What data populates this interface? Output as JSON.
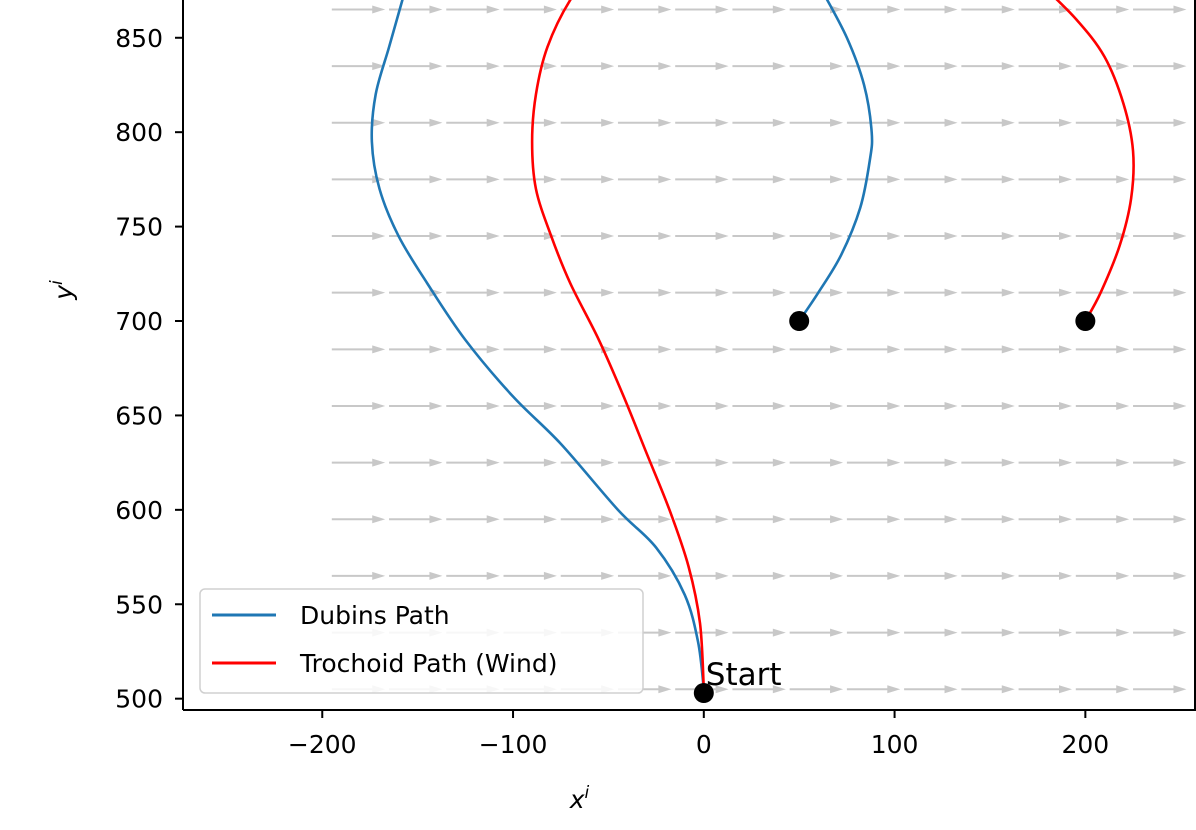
{
  "chart_data": {
    "type": "line",
    "title": "",
    "xlabel": "x",
    "xlabel_sup": "i",
    "ylabel": "y",
    "ylabel_sup": "i",
    "xlim": [
      -273,
      258
    ],
    "ylim": [
      494,
      870
    ],
    "xticks": [
      -200,
      -100,
      0,
      100,
      200
    ],
    "xtick_labels": [
      "−200",
      "−100",
      "0",
      "100",
      "200"
    ],
    "yticks": [
      500,
      550,
      600,
      650,
      700,
      750,
      800,
      850
    ],
    "ytick_labels": [
      "500",
      "550",
      "600",
      "650",
      "700",
      "750",
      "800",
      "850"
    ],
    "grid": false,
    "legend": {
      "placement": "lower-left"
    },
    "colors": {
      "dubins": "#1f77b4",
      "trochoid": "#ff0000",
      "wind": "#c8c8c8",
      "marker": "#000000"
    },
    "wind_field": {
      "direction": "+x",
      "x_start": -195,
      "x_step": 30,
      "x_count": 15,
      "y_start": 505,
      "y_step": 30,
      "y_count": 13,
      "arrow_length": 28
    },
    "series": [
      {
        "name": "Dubins Path",
        "color": "#1f77b4",
        "x": [
          0,
          -3,
          -10,
          -25,
          -45,
          -75,
          -100,
          -125,
          -145,
          -160,
          -170,
          -174,
          -172,
          -165,
          -158
        ],
        "y": [
          505,
          530,
          555,
          580,
          600,
          635,
          660,
          690,
          720,
          745,
          770,
          795,
          820,
          845,
          870
        ]
      },
      {
        "name": "Trochoid Path (Wind)",
        "color": "#ff0000",
        "x": [
          0,
          -2,
          -8,
          -18,
          -30,
          -42,
          -55,
          -70,
          -80,
          -88,
          -90,
          -88,
          -82,
          -70,
          -50
        ],
        "y": [
          505,
          540,
          570,
          600,
          630,
          660,
          690,
          720,
          745,
          770,
          795,
          820,
          845,
          870,
          897
        ]
      },
      {
        "name": "",
        "color": "#1f77b4",
        "x": [
          50,
          60,
          72,
          82,
          87,
          88,
          84,
          75,
          62
        ],
        "y": [
          700,
          715,
          735,
          760,
          785,
          800,
          825,
          850,
          875
        ]
      },
      {
        "name": "",
        "color": "#ff0000",
        "x": [
          200,
          208,
          218,
          224,
          225,
          220,
          210,
          195,
          175
        ],
        "y": [
          700,
          715,
          740,
          765,
          790,
          815,
          840,
          860,
          880
        ]
      }
    ],
    "points": [
      {
        "x": 0,
        "y": 503
      },
      {
        "x": 50,
        "y": 700
      },
      {
        "x": 200,
        "y": 700
      }
    ],
    "annotations": [
      {
        "text": "Start",
        "x": 0,
        "y": 503
      }
    ]
  }
}
